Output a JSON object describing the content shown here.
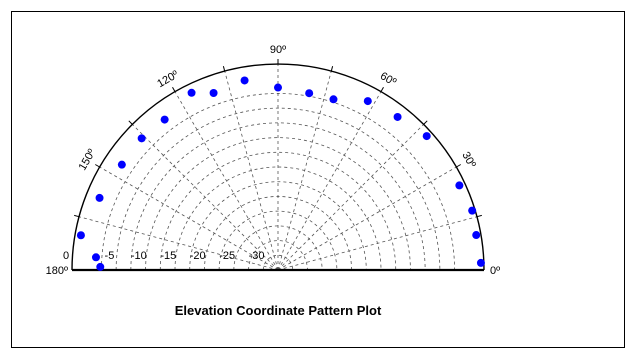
{
  "chart_data": {
    "type": "polar-scatter",
    "title": "Elevation Coordinate Pattern Plot",
    "angle_ticks": [
      "0º",
      "30º",
      "60º",
      "90º",
      "120º",
      "150º",
      "180º"
    ],
    "radial_ticks": [
      "0",
      "-5",
      "-10",
      "-15",
      "-20",
      "-25",
      "-30"
    ],
    "radial_range": [
      -35,
      0
    ],
    "grid": true,
    "marker_color": "#0000ff",
    "points": [
      {
        "angle": 2,
        "value": -0.5
      },
      {
        "angle": 10,
        "value": -0.8
      },
      {
        "angle": 17,
        "value": -0.5
      },
      {
        "angle": 25,
        "value": -1.0
      },
      {
        "angle": 42,
        "value": -1.0
      },
      {
        "angle": 52,
        "value": -2.0
      },
      {
        "angle": 62,
        "value": -2.5
      },
      {
        "angle": 72,
        "value": -4.5
      },
      {
        "angle": 80,
        "value": -4.5
      },
      {
        "angle": 90,
        "value": -4.0
      },
      {
        "angle": 100,
        "value": -2.3
      },
      {
        "angle": 110,
        "value": -3.0
      },
      {
        "angle": 116,
        "value": -1.5
      },
      {
        "angle": 127,
        "value": -3.0
      },
      {
        "angle": 136,
        "value": -2.8
      },
      {
        "angle": 146,
        "value": -3.0
      },
      {
        "angle": 158,
        "value": -2.3
      },
      {
        "angle": 170,
        "value": -1.0
      },
      {
        "angle": 176,
        "value": -4.0
      },
      {
        "angle": 179,
        "value": -4.8
      }
    ]
  }
}
